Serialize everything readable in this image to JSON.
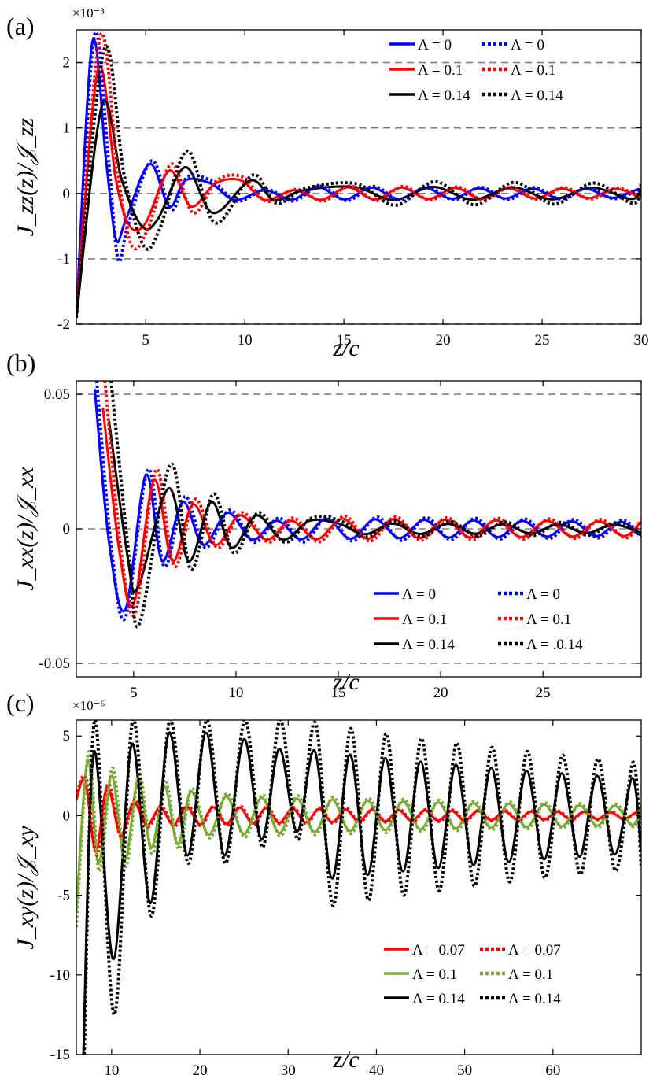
{
  "figure": {
    "panels": [
      {
        "letter": "(a)",
        "multiplier": "×10⁻³",
        "ylabel": "J_zz(z)/𝒥_zz",
        "xlabel": "z/c"
      },
      {
        "letter": "(b)",
        "multiplier": "",
        "ylabel": "J_xx(z)/𝒥_xx",
        "xlabel": "z/c"
      },
      {
        "letter": "(c)",
        "multiplier": "×10⁻⁶",
        "ylabel": "J_xy(z)/𝒥_xy",
        "xlabel": "z/c"
      }
    ]
  },
  "chart_data": [
    {
      "type": "line",
      "panel": "(a)",
      "xlabel": "z/c",
      "ylabel": "J_zz(z)/𝒥_zz",
      "y_multiplier": "×10⁻³",
      "xlim": [
        1.5,
        30
      ],
      "ylim": [
        -2,
        2.5
      ],
      "xticks": [
        5,
        10,
        15,
        20,
        25,
        30
      ],
      "xtick_labels": [
        "5",
        "10",
        "15",
        "20",
        "25",
        "30"
      ],
      "yticks": [
        -2,
        -1,
        0,
        1,
        2
      ],
      "ytick_labels": [
        "-2",
        "-1",
        "0",
        "1",
        "2"
      ],
      "grid_y": [
        -2,
        -1,
        0,
        1,
        2
      ],
      "legend_position": "top-right",
      "colors": {
        "blue": "#0000ff",
        "red": "#ff0000",
        "black": "#000000"
      },
      "series": [
        {
          "name": "Λ = 0",
          "color": "#0000ff",
          "style": "solid",
          "x": [
            1.5,
            2.3,
            3,
            3.5,
            4,
            5.2,
            6.2,
            7,
            8.3,
            9.5,
            11
          ],
          "y": [
            -1.9,
            2.3,
            0.5,
            -0.7,
            -0.4,
            0.45,
            -0.2,
            0.2,
            0.15,
            -0.1,
            0.05
          ]
        },
        {
          "name": "Λ = 0.1",
          "color": "#ff0000",
          "style": "solid",
          "x": [
            1.5,
            2.6,
            3.5,
            4.2,
            5,
            6.2,
            7.3,
            8.5,
            9.8,
            11,
            12.5
          ],
          "y": [
            -1.9,
            1.9,
            0.2,
            -0.5,
            -0.45,
            0.35,
            -0.2,
            0.15,
            0.2,
            -0.1,
            0.05
          ]
        },
        {
          "name": "Λ = 0.14",
          "color": "#000000",
          "style": "solid",
          "x": [
            1.5,
            2.8,
            3.8,
            4.8,
            5.6,
            7,
            8.4,
            10.3,
            11.5,
            13,
            15.5,
            17.5,
            19.5
          ],
          "y": [
            -1.9,
            1.35,
            0.2,
            -0.5,
            -0.4,
            0.4,
            -0.3,
            0.2,
            -0.1,
            0.05,
            0.1,
            -0.1,
            0.1
          ]
        },
        {
          "name": "Λ = 0",
          "color": "#0000ff",
          "style": "dotted",
          "x": [
            1.5,
            2.4,
            3.1,
            3.6,
            4.1,
            5.3,
            6.3,
            7.1,
            8.4,
            9.6,
            11.1
          ],
          "y": [
            -1.9,
            2.4,
            0.6,
            -1.0,
            -0.5,
            0.5,
            -0.25,
            0.25,
            0.18,
            -0.12,
            0.06
          ]
        },
        {
          "name": "Λ = 0.1",
          "color": "#ff0000",
          "style": "dotted",
          "x": [
            1.5,
            2.7,
            3.6,
            4.3,
            5.1,
            6.3,
            7.4,
            8.6,
            9.9,
            11.1,
            12.6
          ],
          "y": [
            -1.9,
            2.4,
            0.3,
            -0.8,
            -0.55,
            0.45,
            -0.3,
            0.2,
            0.25,
            -0.12,
            0.06
          ]
        },
        {
          "name": "Λ = 0.14",
          "color": "#000000",
          "style": "dotted",
          "x": [
            1.5,
            2.9,
            3.9,
            4.9,
            5.7,
            7.1,
            8.5,
            10.4,
            11.6,
            13.1,
            15.6,
            17.6,
            19.6
          ],
          "y": [
            -1.9,
            2.2,
            0.3,
            -0.8,
            -0.55,
            0.65,
            -0.45,
            0.28,
            -0.15,
            0.08,
            0.15,
            -0.18,
            0.18
          ]
        }
      ]
    },
    {
      "type": "line",
      "panel": "(b)",
      "xlabel": "z/c",
      "ylabel": "J_xx(z)/𝒥_xx",
      "xlim": [
        2.2,
        29.8
      ],
      "ylim": [
        -0.055,
        0.055
      ],
      "xticks": [
        5,
        10,
        15,
        20,
        25
      ],
      "xtick_labels": [
        "5",
        "10",
        "15",
        "20",
        "25"
      ],
      "yticks": [
        -0.05,
        0,
        0.05
      ],
      "ytick_labels": [
        "-0.05",
        "0",
        "0.05"
      ],
      "grid_y": [
        -0.05,
        0,
        0.05
      ],
      "legend_position": "lower-right",
      "colors": {
        "blue": "#0000ff",
        "red": "#ff0000",
        "black": "#000000"
      },
      "series": [
        {
          "name": "Λ = 0",
          "color": "#0000ff",
          "style": "solid",
          "x": [
            3.1,
            3.8,
            4.6,
            5.6,
            6.4,
            7.4,
            8.4,
            9.6,
            10.8,
            12
          ],
          "y": [
            0.052,
            -0.005,
            -0.03,
            0.02,
            -0.012,
            0.01,
            -0.006,
            0.006,
            -0.004,
            0.003
          ]
        },
        {
          "name": "Λ = 0.1",
          "color": "#ff0000",
          "style": "solid",
          "x": [
            3.5,
            4.3,
            5.0,
            6.0,
            6.9,
            7.9,
            9.0,
            10.2,
            11.5,
            12.7
          ],
          "y": [
            0.045,
            -0.008,
            -0.028,
            0.018,
            -0.012,
            0.009,
            -0.006,
            0.005,
            -0.004,
            0.003
          ]
        },
        {
          "name": "Λ = 0.14",
          "color": "#000000",
          "style": "solid",
          "x": [
            3.8,
            4.7,
            5.2,
            6.7,
            7.7,
            8.8,
            9.8,
            11,
            12.3,
            13.6,
            15,
            16.3
          ],
          "y": [
            0.04,
            -0.01,
            -0.022,
            0.015,
            -0.012,
            0.01,
            -0.007,
            0.005,
            -0.004,
            0.003,
            0.002,
            -0.002
          ]
        },
        {
          "name": "Λ = 0",
          "color": "#0000ff",
          "style": "dotted",
          "x": [
            3.2,
            3.9,
            4.6,
            5.7,
            6.5,
            7.5,
            8.5,
            9.7,
            10.9,
            12.1
          ],
          "y": [
            0.055,
            -0.006,
            -0.033,
            0.022,
            -0.014,
            0.012,
            -0.007,
            0.007,
            -0.005,
            0.004
          ]
        },
        {
          "name": "Λ = 0.1",
          "color": "#ff0000",
          "style": "dotted",
          "x": [
            3.6,
            4.4,
            5.1,
            6.1,
            7.0,
            8.0,
            9.1,
            10.3,
            11.6,
            12.8
          ],
          "y": [
            0.055,
            -0.009,
            -0.031,
            0.022,
            -0.014,
            0.011,
            -0.007,
            0.006,
            -0.005,
            0.004
          ]
        },
        {
          "name": "Λ = .0.14",
          "color": "#000000",
          "style": "dotted",
          "x": [
            3.9,
            4.8,
            5.3,
            6.8,
            7.8,
            8.9,
            9.9,
            11.1,
            12.4,
            13.7,
            15.1,
            16.4
          ],
          "y": [
            0.055,
            -0.012,
            -0.035,
            0.024,
            -0.015,
            0.013,
            -0.009,
            0.006,
            -0.005,
            0.004,
            0.003,
            -0.003
          ]
        }
      ]
    },
    {
      "type": "line",
      "panel": "(c)",
      "xlabel": "z/c",
      "ylabel": "J_xy(z)/𝒥_xy",
      "y_multiplier": "×10⁻⁶",
      "xlim": [
        6,
        70
      ],
      "ylim": [
        -15,
        6
      ],
      "xticks": [
        10,
        20,
        30,
        40,
        50,
        60
      ],
      "xtick_labels": [
        "10",
        "20",
        "30",
        "40",
        "50",
        "60"
      ],
      "yticks": [
        -15,
        -10,
        -5,
        0,
        5
      ],
      "ytick_labels": [
        "-15",
        "-10",
        "-5",
        "0",
        "5"
      ],
      "legend_position": "lower-right",
      "colors": {
        "red": "#ff0000",
        "green": "#77ac30",
        "black": "#000000"
      },
      "series": [
        {
          "name": "Λ = 0.07",
          "color": "#ff0000",
          "style": "solid",
          "x": [
            6,
            7,
            8.2,
            9.5,
            11,
            12.5,
            14,
            15.5
          ],
          "y": [
            1,
            2.2,
            -2.2,
            1.8,
            -1.2,
            0.8,
            -0.6,
            0.5
          ]
        },
        {
          "name": "Λ = 0.1",
          "color": "#77ac30",
          "style": "solid",
          "x": [
            6,
            7.3,
            8.5,
            10,
            11.5,
            13,
            14.5,
            16,
            17.5,
            19,
            21,
            23
          ],
          "y": [
            -6,
            3.5,
            -3,
            2.5,
            -2.8,
            2.2,
            -2,
            1.8,
            -1.8,
            1.5,
            -1.2,
            1.2
          ]
        },
        {
          "name": "Λ = 0.14",
          "color": "#000000",
          "style": "solid",
          "x": [
            6.8,
            8,
            10.2,
            12.3,
            14.4,
            16.5,
            18.6,
            20.7,
            22.8,
            25,
            27,
            29,
            31
          ],
          "y": [
            -15,
            4,
            -9,
            4.5,
            -5.5,
            5.2,
            -2.5,
            5.2,
            -2.5,
            4.8,
            -1.5,
            4.2,
            -1
          ]
        },
        {
          "name": "Λ = 0.07",
          "color": "#ff0000",
          "style": "dotted",
          "x": [
            6,
            7.1,
            8.3,
            9.6,
            11.1,
            12.6,
            14.1,
            15.6
          ],
          "y": [
            1.2,
            2.4,
            -2.5,
            2,
            -1.4,
            1,
            -0.7,
            0.6
          ]
        },
        {
          "name": "Λ = 0.1",
          "color": "#77ac30",
          "style": "dotted",
          "x": [
            6,
            7.4,
            8.6,
            10.1,
            11.6,
            13.1,
            14.6,
            16.1,
            17.6,
            19.1,
            21.1,
            23.1
          ],
          "y": [
            -7,
            4,
            -3.5,
            3,
            -3.2,
            2.6,
            -2.4,
            2.1,
            -2.1,
            1.7,
            -1.4,
            1.4
          ]
        },
        {
          "name": "Λ = 0.14",
          "color": "#000000",
          "style": "dotted",
          "x": [
            6.9,
            8.1,
            10.3,
            12.4,
            14.5,
            16.6,
            18.7,
            20.8,
            22.9,
            25.1,
            27.1,
            29.1,
            31.1
          ],
          "y": [
            -15,
            6,
            -12.5,
            6,
            -6.3,
            6,
            -3,
            6,
            -3,
            6,
            -2,
            6,
            -1.5
          ]
        }
      ]
    }
  ]
}
